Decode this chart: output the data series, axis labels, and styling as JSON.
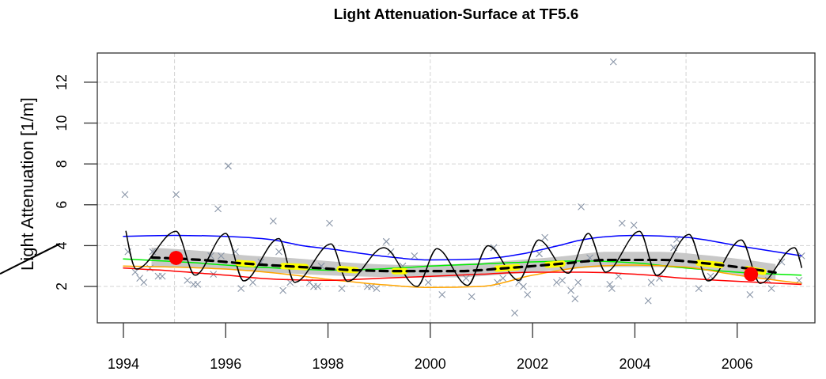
{
  "chart_data": {
    "type": "line",
    "title": "Light Attenuation-Surface at TF5.6",
    "ylabel": "Light Attenuation [1/m]",
    "xlim": [
      1993.49,
      2007.52
    ],
    "ylim": [
      0.22,
      13.43
    ],
    "xticks": [
      1994,
      1996,
      1998,
      2000,
      2002,
      2004,
      2006
    ],
    "yticks": [
      2,
      4,
      6,
      8,
      10,
      12
    ],
    "grid": "y",
    "ref_lines": [
      {
        "axis": "x",
        "value": 1995,
        "color": "#d3d3d3",
        "line_style": "dashed"
      },
      {
        "axis": "x",
        "value": 2000,
        "color": "#d3d3d3",
        "line_style": "dashed"
      },
      {
        "axis": "x",
        "value": 2005,
        "color": "#d3d3d3",
        "line_style": "dashed"
      }
    ],
    "series": [
      {
        "type": "scatter",
        "color": "#8a96a8",
        "marker": "cross",
        "x": [
          1994.03,
          1995.03,
          1996.05,
          1995.85,
          1996.93,
          1998.03,
          1994.09,
          1994.23,
          1994.32,
          1994.4,
          1994.52,
          1994.57,
          1994.68,
          1994.76,
          1995.25,
          1995.37,
          1995.45,
          1995.71,
          1995.76,
          1995.91,
          1996.19,
          1996.3,
          1996.53,
          1996.69,
          1997.04,
          1997.12,
          1997.26,
          1997.64,
          1997.72,
          1997.8,
          1997.87,
          1998.27,
          1998.77,
          1998.85,
          1998.95,
          1999.14,
          1999.23,
          1999.46,
          1999.69,
          1999.96,
          2000.23,
          2000.7,
          2000.81,
          2001.24,
          2001.31,
          2001.42,
          2001.65,
          2001.73,
          2001.82,
          2001.9,
          2002.13,
          2002.24,
          2002.47,
          2002.58,
          2002.75,
          2002.83,
          2002.89,
          2002.95,
          2003.12,
          2003.51,
          2003.55,
          2003.58,
          2003.68,
          2003.75,
          2003.98,
          2004.26,
          2004.32,
          2004.48,
          2004.76,
          2004.82,
          2005.25,
          2005.48,
          2006.25,
          2006.61,
          2006.67,
          2006.87,
          2007.21,
          2007.26
        ],
        "values": [
          6.5,
          6.5,
          7.9,
          5.8,
          5.2,
          5.1,
          3.7,
          2.7,
          2.4,
          2.2,
          2.9,
          3.7,
          2.5,
          2.5,
          2.3,
          2.1,
          2.1,
          3.5,
          2.6,
          3.5,
          3.7,
          1.9,
          2.2,
          3.2,
          3.7,
          1.8,
          2.2,
          2.2,
          2.0,
          2.0,
          3.0,
          1.9,
          2.0,
          2.0,
          1.9,
          4.2,
          3.7,
          3.0,
          3.5,
          2.2,
          1.6,
          2.4,
          1.5,
          3.9,
          2.2,
          2.4,
          0.7,
          2.2,
          2.0,
          1.6,
          3.6,
          4.4,
          2.2,
          2.3,
          1.8,
          1.4,
          2.2,
          5.9,
          3.4,
          2.1,
          1.9,
          13.0,
          2.5,
          5.1,
          5.0,
          1.3,
          2.2,
          2.4,
          3.9,
          4.3,
          1.9,
          2.5,
          1.6,
          2.3,
          1.9,
          3.2,
          2.3,
          3.5
        ]
      },
      {
        "color": "#0000ff",
        "marker": "none",
        "x": [
          1994.0,
          1995,
          1996,
          1997,
          1997.5,
          1998,
          1999,
          2000,
          2001,
          2002,
          2002.5,
          2003,
          2004,
          2005,
          2006,
          2007.25
        ],
        "values": [
          4.45,
          4.5,
          4.45,
          4.25,
          4.0,
          3.85,
          3.5,
          3.3,
          3.35,
          3.7,
          4.0,
          4.3,
          4.5,
          4.4,
          4.0,
          3.5
        ]
      },
      {
        "color": "#00ee00",
        "marker": "none",
        "x": [
          1994.0,
          1995.45,
          1996,
          1997,
          1998,
          1999,
          2000,
          2001,
          2002,
          2003,
          2004,
          2005,
          2006,
          2007.25
        ],
        "values": [
          3.35,
          3.15,
          3.05,
          2.9,
          2.8,
          2.85,
          3.0,
          3.1,
          3.2,
          3.25,
          3.15,
          2.9,
          2.7,
          2.55
        ]
      },
      {
        "color": "#ffa500",
        "marker": "none",
        "x": [
          1994,
          1995,
          1996,
          1997,
          1998,
          1999,
          2000,
          2001,
          2002,
          2003,
          2004,
          2005,
          2006,
          2007.25
        ],
        "values": [
          3.0,
          2.95,
          2.85,
          2.65,
          2.35,
          2.1,
          1.95,
          2.0,
          2.55,
          2.95,
          3.05,
          2.95,
          2.55,
          2.15
        ]
      },
      {
        "color": "#ff0000",
        "marker": "none",
        "x": [
          1994,
          1995,
          1996,
          1997,
          1998,
          1999,
          2000,
          2001,
          2002,
          2003,
          2004,
          2005,
          2006,
          2007.25
        ],
        "values": [
          2.9,
          2.75,
          2.55,
          2.35,
          2.3,
          2.4,
          2.5,
          2.6,
          2.7,
          2.7,
          2.6,
          2.4,
          2.25,
          2.1
        ]
      },
      {
        "color": "#000000",
        "marker": "none",
        "x": [
          1994.05,
          1994.25,
          1995.03,
          1995.4,
          1996.0,
          1996.35,
          1997.04,
          1997.35,
          1998.06,
          1998.38,
          1999.09,
          1999.74,
          2000.13,
          2000.73,
          2001.13,
          2001.73,
          2002.12,
          2002.7,
          2003.09,
          2003.43,
          2004.09,
          2004.43,
          2005.06,
          2005.43,
          2006.08,
          2006.45,
          2007.12,
          2007.26
        ],
        "values": [
          4.7,
          2.85,
          4.7,
          2.55,
          4.6,
          2.27,
          4.35,
          2.2,
          4.08,
          2.25,
          3.9,
          2.0,
          3.85,
          2.05,
          4.0,
          2.3,
          4.28,
          2.65,
          4.6,
          2.7,
          4.7,
          2.54,
          4.55,
          2.27,
          4.28,
          2.15,
          3.9,
          2.93
        ]
      },
      {
        "color": "#ffff00",
        "marker": "none",
        "x": [
          1996.25,
          1996.53,
          1996.8,
          1997.12,
          1997.56,
          1997.9,
          1998.23,
          1998.54,
          1998.9,
          1999.3,
          1999.5,
          2000.5,
          2001.31,
          2001.7,
          2002.0,
          2002.29,
          2002.58,
          2004.0,
          2005.25,
          2005.68,
          2005.9,
          2006.2,
          2006.51
        ],
        "values": [
          3.15,
          3.1,
          null,
          3.0,
          2.95,
          null,
          2.85,
          2.8,
          null,
          2.75,
          2.75,
          null,
          2.87,
          2.94,
          null,
          3.06,
          3.12,
          null,
          3.15,
          3.05,
          null,
          2.85,
          2.72
        ]
      },
      {
        "color": "#000000",
        "marker": "none",
        "line_style": "dashed",
        "x": [
          1994.55,
          1995.5,
          1996.5,
          1997.5,
          1998.5,
          1999.5,
          2000.5,
          2001.5,
          2002.5,
          2003.5,
          2004.5,
          2005.5,
          2006.75
        ],
        "values": [
          3.42,
          3.3,
          3.1,
          2.95,
          2.8,
          2.75,
          2.75,
          2.9,
          3.1,
          3.3,
          3.3,
          3.1,
          2.68
        ],
        "lower": [
          2.95,
          2.9,
          2.75,
          2.6,
          2.5,
          2.45,
          2.45,
          2.6,
          2.8,
          2.95,
          2.95,
          2.75,
          2.3
        ],
        "upper": [
          3.9,
          3.75,
          3.5,
          3.35,
          3.15,
          3.05,
          3.1,
          3.25,
          3.45,
          3.7,
          3.7,
          3.5,
          3.1
        ]
      },
      {
        "type": "scatter",
        "color": "#ff0000",
        "marker": "circle",
        "x": [
          1995.03,
          2006.27
        ],
        "values": [
          3.4,
          2.6
        ]
      }
    ]
  }
}
